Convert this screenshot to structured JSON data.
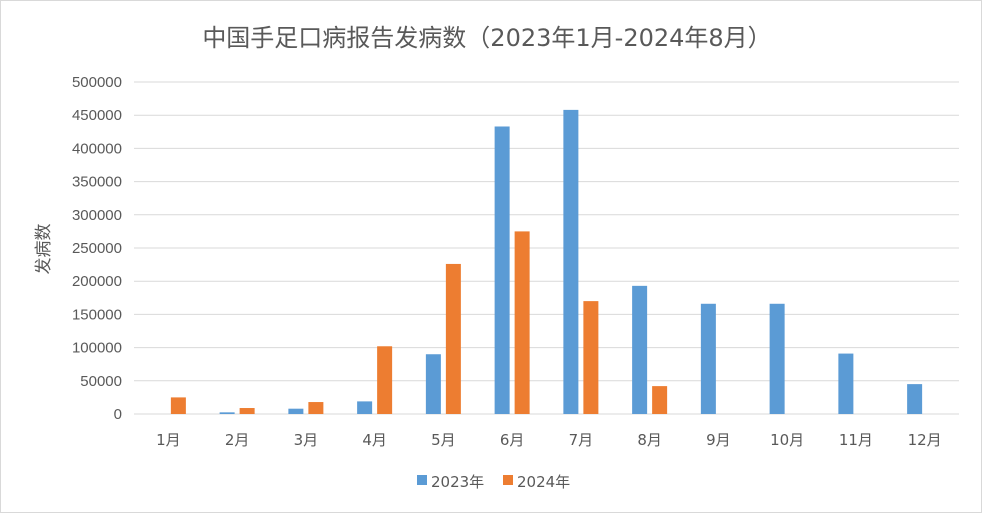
{
  "chart_data": {
    "type": "bar",
    "title": "中国手足口病报告发病数（2023年1月-2024年8月）",
    "xlabel": "",
    "ylabel": "发病数",
    "ylim": [
      0,
      500000
    ],
    "yticks": [
      0,
      50000,
      100000,
      150000,
      200000,
      250000,
      300000,
      350000,
      400000,
      450000,
      500000
    ],
    "ytick_labels": [
      "0",
      "50000",
      "100000",
      "150000",
      "200000",
      "250000",
      "300000",
      "350000",
      "400000",
      "450000",
      "500000"
    ],
    "grid": true,
    "legend_position": "bottom-center",
    "categories": [
      "1月",
      "2月",
      "3月",
      "4月",
      "5月",
      "6月",
      "7月",
      "8月",
      "9月",
      "10月",
      "11月",
      "12月"
    ],
    "series": [
      {
        "name": "2023年",
        "color": "#5b9bd5",
        "values": [
          0,
          2500,
          8000,
          19000,
          90000,
          433000,
          458000,
          193000,
          166000,
          166000,
          91000,
          45000
        ]
      },
      {
        "name": "2024年",
        "color": "#ed7d31",
        "values": [
          25000,
          9000,
          18000,
          102000,
          226000,
          275000,
          170000,
          42000,
          null,
          null,
          null,
          null
        ]
      }
    ]
  }
}
